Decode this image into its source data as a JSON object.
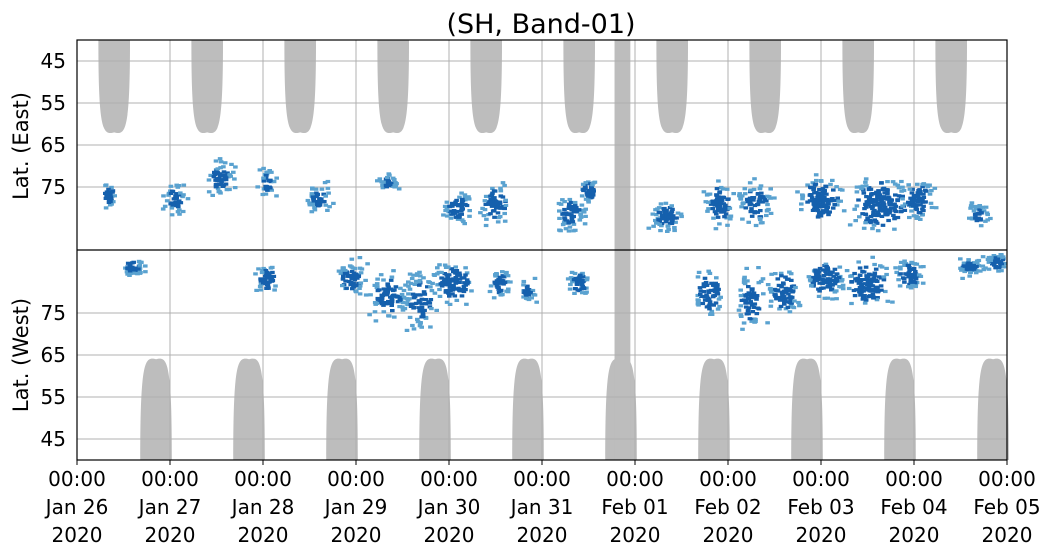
{
  "chart_data": {
    "type": "heatmap",
    "title": "(SH, Band-01)",
    "ylabel_top": "Lat. (East)",
    "ylabel_bottom": "Lat. (West)",
    "y_axis_order": "top panel 90 at center increasing outward to 40 at top; bottom panel mirrored",
    "ytick_labels_top": [
      "45",
      "55",
      "65",
      "75"
    ],
    "ytick_labels_bottom": [
      "75",
      "65",
      "55",
      "45"
    ],
    "ytick_values": [
      45,
      55,
      65,
      75
    ],
    "ylim": [
      40,
      90
    ],
    "xlim": [
      "2020-01-26 00:00",
      "2020-02-05 00:00"
    ],
    "x_ticks": [
      {
        "time": "00:00",
        "date": "Jan 26",
        "year": "2020"
      },
      {
        "time": "00:00",
        "date": "Jan 27",
        "year": "2020"
      },
      {
        "time": "00:00",
        "date": "Jan 28",
        "year": "2020"
      },
      {
        "time": "00:00",
        "date": "Jan 29",
        "year": "2020"
      },
      {
        "time": "00:00",
        "date": "Jan 30",
        "year": "2020"
      },
      {
        "time": "00:00",
        "date": "Jan 31",
        "year": "2020"
      },
      {
        "time": "00:00",
        "date": "Feb 01",
        "year": "2020"
      },
      {
        "time": "00:00",
        "date": "Feb 02",
        "year": "2020"
      },
      {
        "time": "00:00",
        "date": "Feb 03",
        "year": "2020"
      },
      {
        "time": "00:00",
        "date": "Feb 04",
        "year": "2020"
      },
      {
        "time": "00:00",
        "date": "Feb 05",
        "year": "2020"
      }
    ],
    "grid": true,
    "colors": {
      "no_coverage": "#bdbdbd",
      "echo_light": "#5aa2d0",
      "echo_dark": "#1560ad",
      "divider": "#000000",
      "gridline": "#b0b0b0"
    },
    "coverage_gaps": {
      "description": "grey regions with no coverage, daily semi-elliptical lobes",
      "east_lobe_centers_days": [
        0.4,
        1.4,
        2.4,
        3.4,
        4.4,
        5.4,
        6.4,
        7.4,
        8.4,
        9.4
      ],
      "west_lobe_centers_days": [
        0.85,
        1.85,
        2.85,
        3.85,
        4.85,
        5.85,
        6.85,
        7.85,
        8.85,
        9.85
      ],
      "east_lobe_min_lat": 62,
      "west_lobe_min_lat": 64,
      "full_gap_band_days": [
        5.78,
        5.95
      ]
    },
    "echo_activity": {
      "description": "blue echo occurrence, mostly between 62 and 90 deg on both sides",
      "east_blobs": [
        [
          0.35,
          77,
          0.06,
          4,
          0.8
        ],
        [
          1.05,
          78,
          0.08,
          5,
          0.8
        ],
        [
          1.55,
          73,
          0.1,
          5,
          0.9
        ],
        [
          2.05,
          74,
          0.07,
          5,
          0.7
        ],
        [
          2.6,
          78,
          0.1,
          5,
          0.7
        ],
        [
          3.35,
          74,
          0.07,
          3,
          0.7
        ],
        [
          4.1,
          80,
          0.1,
          5,
          0.9
        ],
        [
          4.5,
          79,
          0.1,
          6,
          1.0
        ],
        [
          5.3,
          81,
          0.12,
          6,
          0.8
        ],
        [
          5.5,
          76,
          0.06,
          4,
          0.9
        ],
        [
          6.35,
          82,
          0.12,
          5,
          0.8
        ],
        [
          6.9,
          79,
          0.1,
          7,
          1.0
        ],
        [
          7.3,
          79,
          0.12,
          7,
          0.9
        ],
        [
          8.0,
          78,
          0.15,
          7,
          1.1
        ],
        [
          8.65,
          79,
          0.2,
          8,
          1.2
        ],
        [
          9.05,
          78,
          0.12,
          6,
          1.0
        ],
        [
          9.7,
          82,
          0.08,
          4,
          0.7
        ]
      ],
      "west_blobs": [
        [
          0.6,
          86,
          0.08,
          3,
          0.8
        ],
        [
          2.05,
          83,
          0.08,
          5,
          0.9
        ],
        [
          2.95,
          83,
          0.12,
          6,
          0.8
        ],
        [
          3.35,
          79,
          0.14,
          8,
          0.9
        ],
        [
          3.7,
          78,
          0.12,
          9,
          0.9
        ],
        [
          4.05,
          82,
          0.14,
          7,
          1.0
        ],
        [
          4.55,
          82,
          0.08,
          5,
          0.8
        ],
        [
          4.85,
          80,
          0.06,
          4,
          0.7
        ],
        [
          5.4,
          82,
          0.08,
          5,
          0.8
        ],
        [
          6.8,
          80,
          0.1,
          8,
          1.0
        ],
        [
          7.25,
          78,
          0.1,
          9,
          1.0
        ],
        [
          7.6,
          80,
          0.12,
          8,
          0.9
        ],
        [
          8.05,
          83,
          0.14,
          6,
          1.0
        ],
        [
          8.5,
          82,
          0.15,
          7,
          1.1
        ],
        [
          8.95,
          84,
          0.1,
          5,
          0.9
        ],
        [
          9.6,
          86,
          0.1,
          3,
          0.7
        ],
        [
          9.9,
          87,
          0.08,
          3,
          0.8
        ]
      ]
    }
  }
}
